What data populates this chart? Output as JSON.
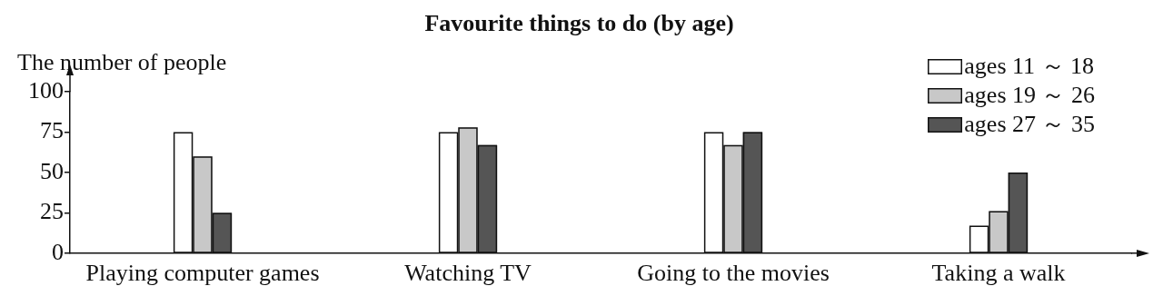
{
  "chart_data": {
    "type": "bar",
    "title": "Favourite things to do (by age)",
    "ylabel": "The number of people",
    "categories": [
      "Playing computer games",
      "Watching TV",
      "Going to the movies",
      "Taking a walk"
    ],
    "series": [
      {
        "name": "ages 11 ～ 18",
        "color": "#ffffff",
        "values": [
          75,
          75,
          75,
          17
        ]
      },
      {
        "name": "ages 19 ～ 26",
        "color": "#c8c8c8",
        "values": [
          60,
          78,
          67,
          26
        ]
      },
      {
        "name": "ages 27 ～ 35",
        "color": "#555555",
        "values": [
          25,
          67,
          75,
          50
        ]
      }
    ],
    "ylim": [
      0,
      100
    ],
    "yticks": [
      0,
      25,
      50,
      75,
      100
    ],
    "grid": false,
    "legend": "top right"
  }
}
